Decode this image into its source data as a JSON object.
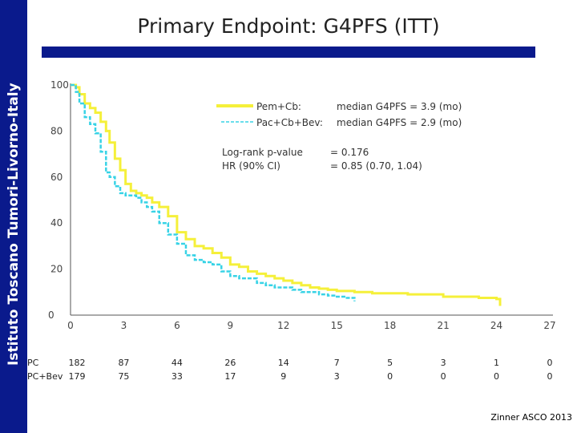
{
  "sidebar": {
    "text": "Istituto Toscano Tumori-Livorno-Italy"
  },
  "slide": {
    "title": "Primary Endpoint: G4PFS (ITT)",
    "credit": "Zinner ASCO 2013"
  },
  "colors": {
    "sidebar": "#0a1a8c",
    "pem": "#f5f03a",
    "bev": "#38d3e6",
    "axis": "#555555"
  },
  "chart_data": {
    "type": "line",
    "title": "Primary Endpoint: G4PFS (ITT)",
    "xlim": [
      0,
      27
    ],
    "ylim": [
      0,
      100
    ],
    "x_ticks": [
      "0",
      "3",
      "6",
      "9",
      "12",
      "15",
      "18",
      "21",
      "24",
      "27"
    ],
    "y_ticks": [
      "0",
      "20",
      "40",
      "60",
      "80",
      "100"
    ],
    "legend": {
      "pem_label": "Pem+Cb:",
      "pem_median": "median G4PFS = 3.9 (mo)",
      "bev_label": "Pac+Cb+Bev:",
      "bev_median": "median G4PFS = 2.9 (mo)"
    },
    "stats": {
      "logrank_label": "Log-rank p-value",
      "logrank_value": "= 0.176",
      "hr_label": "HR (90% CI)",
      "hr_value": "= 0.85 (0.70, 1.04)"
    },
    "series": [
      {
        "name": "Pem+Cb",
        "style": "solid",
        "x": [
          0,
          0.3,
          0.5,
          0.8,
          1.1,
          1.4,
          1.7,
          2.0,
          2.2,
          2.5,
          2.8,
          3.1,
          3.4,
          3.7,
          4.0,
          4.3,
          4.6,
          5.0,
          5.5,
          6.0,
          6.5,
          7.0,
          7.5,
          8.0,
          8.5,
          9.0,
          9.5,
          10.0,
          10.5,
          11.0,
          11.5,
          12.0,
          12.5,
          13.0,
          13.5,
          14.0,
          14.5,
          15.0,
          16.0,
          17.0,
          18.0,
          19.0,
          20.0,
          21.0,
          22.0,
          23.0,
          24.0,
          24.2
        ],
        "y": [
          100,
          99,
          96,
          92,
          90,
          88,
          84,
          80,
          75,
          68,
          63,
          57,
          54,
          53,
          52,
          51,
          49,
          47,
          43,
          36,
          33,
          30,
          29,
          27,
          25,
          22,
          21,
          19,
          18,
          17,
          16,
          15,
          14,
          13,
          12,
          11.5,
          11,
          10.5,
          10,
          9.5,
          9.5,
          9,
          9,
          8,
          8,
          7.5,
          7,
          4
        ]
      },
      {
        "name": "Pac+Cb+Bev",
        "style": "dashed",
        "x": [
          0,
          0.3,
          0.5,
          0.8,
          1.1,
          1.4,
          1.7,
          2.0,
          2.2,
          2.5,
          2.8,
          3.1,
          3.4,
          3.7,
          4.0,
          4.3,
          4.6,
          5.0,
          5.5,
          6.0,
          6.5,
          7.0,
          7.5,
          8.0,
          8.5,
          9.0,
          9.5,
          10.0,
          10.5,
          11.0,
          11.5,
          12.0,
          12.5,
          13.0,
          13.5,
          14.0,
          14.5,
          15.0,
          15.5,
          16.0
        ],
        "y": [
          100,
          97,
          92,
          86,
          83,
          79,
          71,
          62,
          60,
          56,
          53,
          52,
          52,
          51,
          49,
          47,
          45,
          40,
          35,
          31,
          26,
          24,
          23,
          22,
          19,
          17,
          16,
          16,
          14,
          13,
          12,
          12,
          11,
          10,
          10,
          9,
          8.5,
          8,
          7.5,
          6
        ]
      }
    ],
    "risk_table": {
      "labels": [
        "PC",
        "PC+Bev"
      ],
      "times": [
        "0",
        "3",
        "6",
        "9",
        "12",
        "15",
        "18",
        "21",
        "24",
        "27"
      ],
      "rows": [
        [
          "182",
          "87",
          "44",
          "26",
          "14",
          "7",
          "5",
          "3",
          "1",
          "0"
        ],
        [
          "179",
          "75",
          "33",
          "17",
          "9",
          "3",
          "0",
          "0",
          "0",
          "0"
        ]
      ]
    }
  }
}
